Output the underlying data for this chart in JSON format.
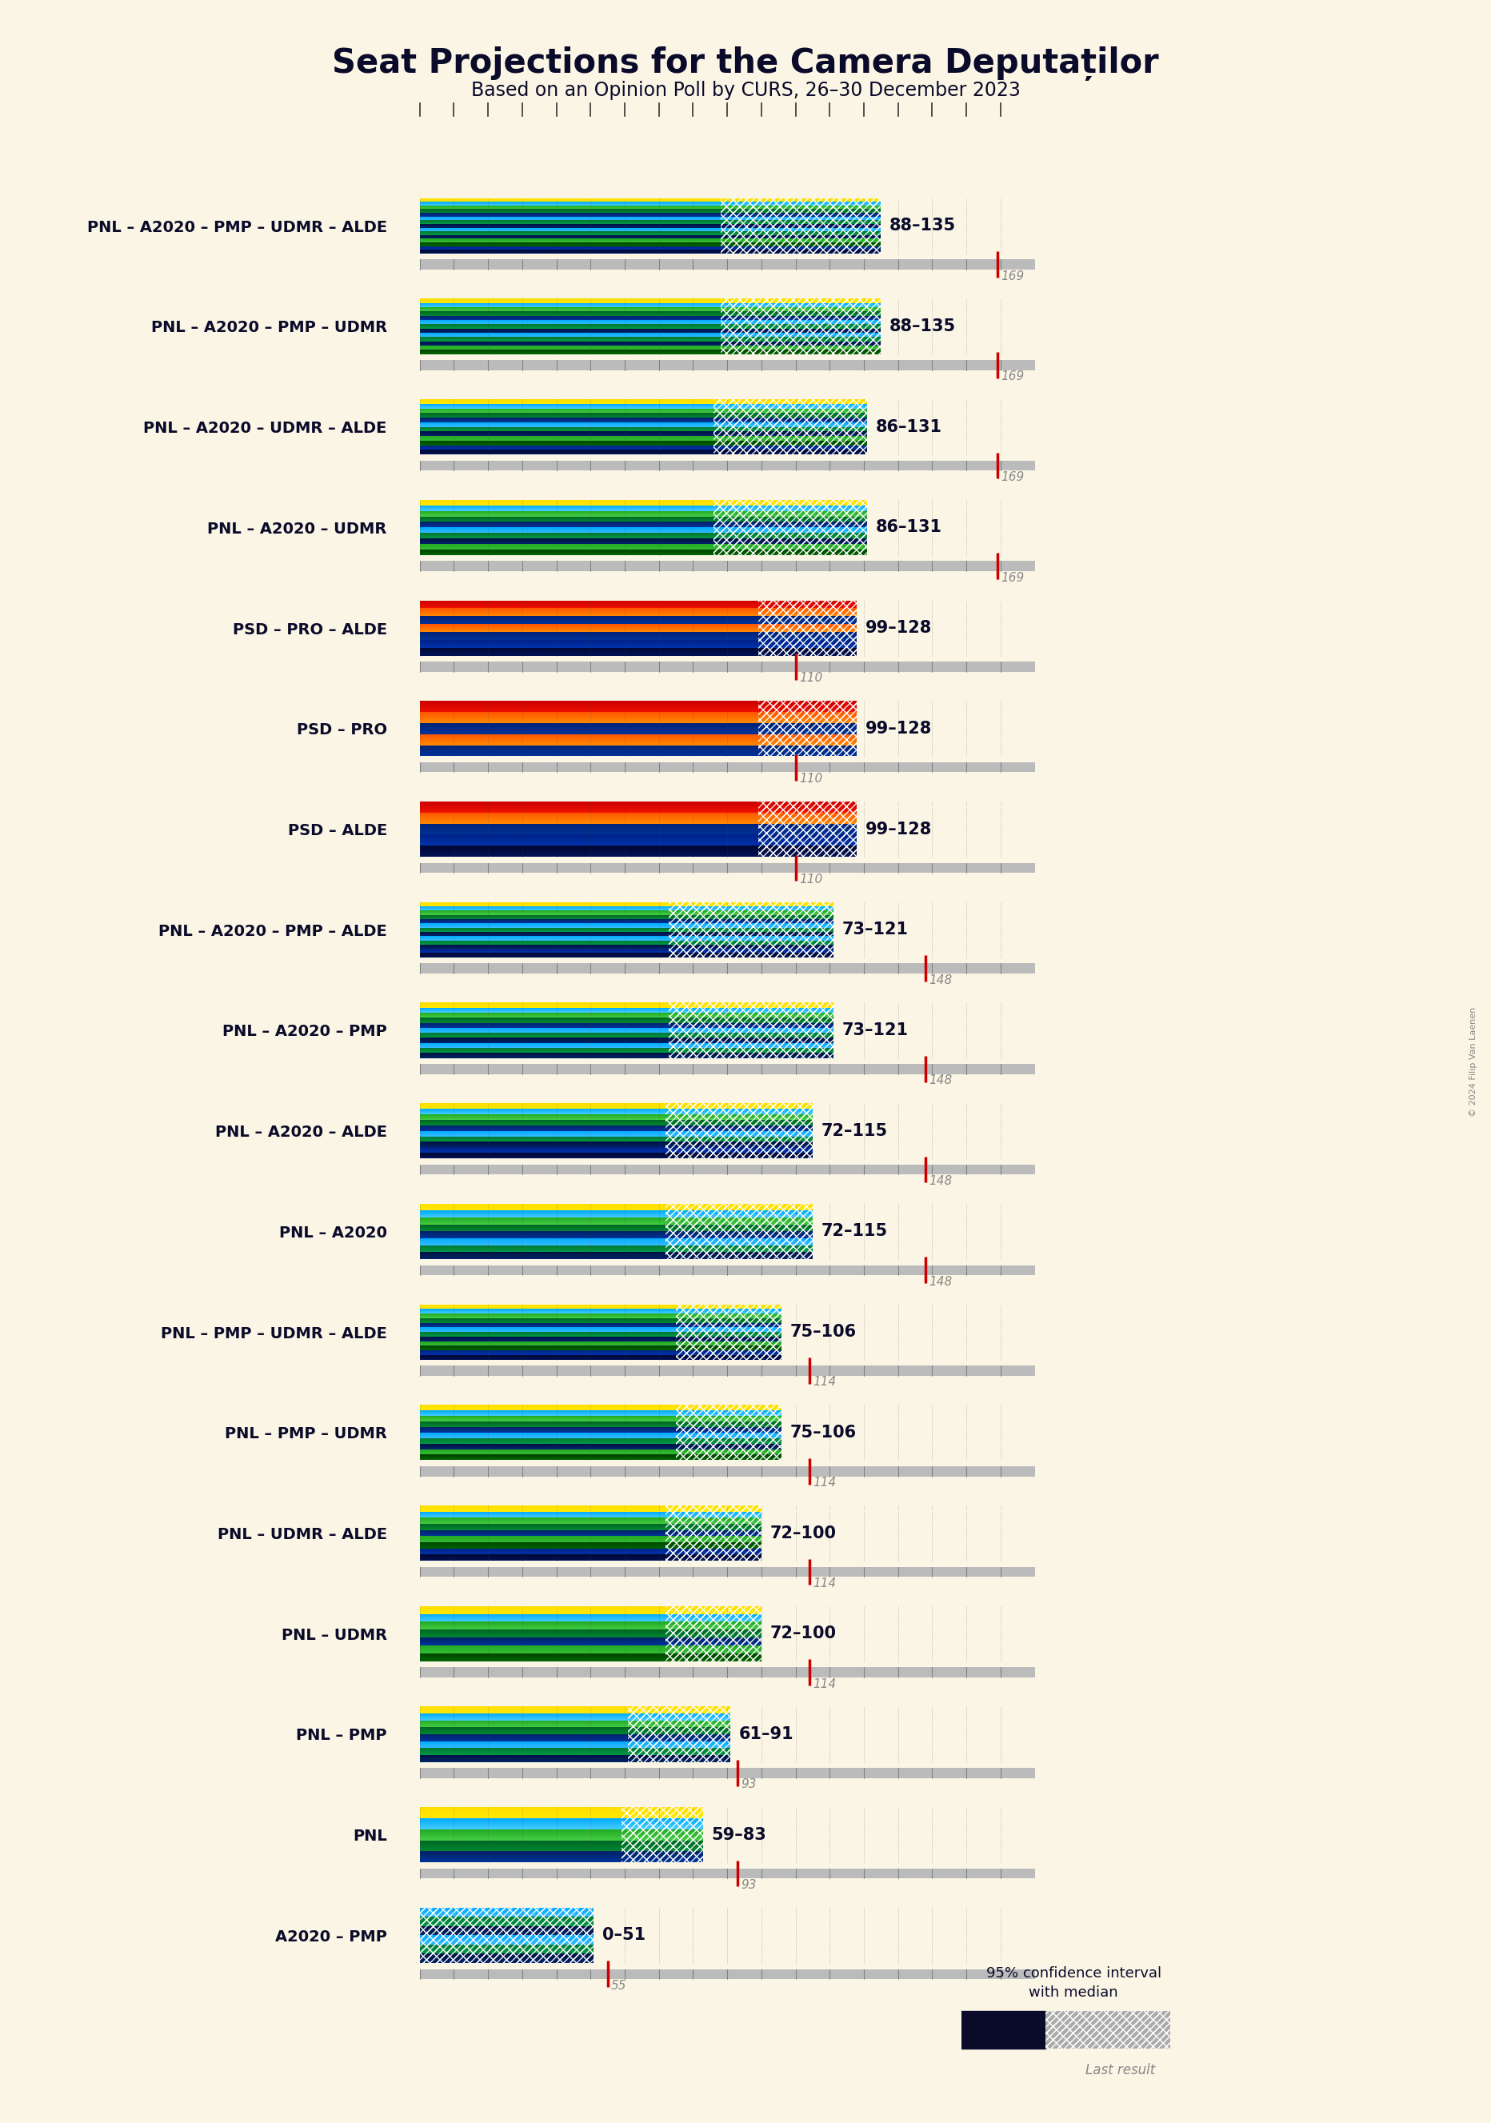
{
  "title": "Seat Projections for the Camera Deputaților",
  "subtitle": "Based on an Opinion Poll by CURS, 26–30 December 2023",
  "copyright": "© 2024 Filip Van Laenen",
  "background_color": "#FAF5E4",
  "coalitions": [
    {
      "name": "PNL – A2020 – PMP – UDMR – ALDE",
      "low": 88,
      "high": 135,
      "last": 169,
      "parties": [
        "PNL",
        "A2020",
        "PMP",
        "UDMR",
        "ALDE"
      ]
    },
    {
      "name": "PNL – A2020 – PMP – UDMR",
      "low": 88,
      "high": 135,
      "last": 169,
      "parties": [
        "PNL",
        "A2020",
        "PMP",
        "UDMR"
      ]
    },
    {
      "name": "PNL – A2020 – UDMR – ALDE",
      "low": 86,
      "high": 131,
      "last": 169,
      "parties": [
        "PNL",
        "A2020",
        "UDMR",
        "ALDE"
      ]
    },
    {
      "name": "PNL – A2020 – UDMR",
      "low": 86,
      "high": 131,
      "last": 169,
      "parties": [
        "PNL",
        "A2020",
        "UDMR"
      ]
    },
    {
      "name": "PSD – PRO – ALDE",
      "low": 99,
      "high": 128,
      "last": 110,
      "parties": [
        "PSD",
        "PRO",
        "ALDE"
      ]
    },
    {
      "name": "PSD – PRO",
      "low": 99,
      "high": 128,
      "last": 110,
      "parties": [
        "PSD",
        "PRO"
      ]
    },
    {
      "name": "PSD – ALDE",
      "low": 99,
      "high": 128,
      "last": 110,
      "parties": [
        "PSD",
        "ALDE"
      ]
    },
    {
      "name": "PNL – A2020 – PMP – ALDE",
      "low": 73,
      "high": 121,
      "last": 148,
      "parties": [
        "PNL",
        "A2020",
        "PMP",
        "ALDE"
      ]
    },
    {
      "name": "PNL – A2020 – PMP",
      "low": 73,
      "high": 121,
      "last": 148,
      "parties": [
        "PNL",
        "A2020",
        "PMP"
      ]
    },
    {
      "name": "PNL – A2020 – ALDE",
      "low": 72,
      "high": 115,
      "last": 148,
      "parties": [
        "PNL",
        "A2020",
        "ALDE"
      ]
    },
    {
      "name": "PNL – A2020",
      "low": 72,
      "high": 115,
      "last": 148,
      "parties": [
        "PNL",
        "A2020"
      ]
    },
    {
      "name": "PNL – PMP – UDMR – ALDE",
      "low": 75,
      "high": 106,
      "last": 114,
      "parties": [
        "PNL",
        "PMP",
        "UDMR",
        "ALDE"
      ]
    },
    {
      "name": "PNL – PMP – UDMR",
      "low": 75,
      "high": 106,
      "last": 114,
      "parties": [
        "PNL",
        "PMP",
        "UDMR"
      ]
    },
    {
      "name": "PNL – UDMR – ALDE",
      "low": 72,
      "high": 100,
      "last": 114,
      "parties": [
        "PNL",
        "UDMR",
        "ALDE"
      ]
    },
    {
      "name": "PNL – UDMR",
      "low": 72,
      "high": 100,
      "last": 114,
      "parties": [
        "PNL",
        "UDMR"
      ]
    },
    {
      "name": "PNL – PMP",
      "low": 61,
      "high": 91,
      "last": 93,
      "parties": [
        "PNL",
        "PMP"
      ]
    },
    {
      "name": "PNL",
      "low": 59,
      "high": 83,
      "last": 93,
      "parties": [
        "PNL"
      ]
    },
    {
      "name": "A2020 – PMP",
      "low": 0,
      "high": 51,
      "last": 55,
      "parties": [
        "A2020",
        "PMP"
      ]
    }
  ],
  "party_bands": {
    "PNL": [
      [
        "#FFE000",
        "#FFE000"
      ],
      [
        "#80D8FF",
        "#00B8FF"
      ],
      [
        "#00CC66",
        "#009944"
      ],
      [
        "#003399",
        "#002266"
      ]
    ],
    "A2020": [
      [
        "#00AAFF",
        "#0077DD"
      ],
      [
        "#006633",
        "#004422"
      ],
      [
        "#002266",
        "#001144"
      ]
    ],
    "PMP": [
      [
        "#00AAFF",
        "#0077DD"
      ],
      [
        "#006633",
        "#004422"
      ],
      [
        "#002266",
        "#001144"
      ]
    ],
    "UDMR": [
      [
        "#22AA22",
        "#116611"
      ],
      [
        "#004400",
        "#003300"
      ]
    ],
    "ALDE": [
      [
        "#003399",
        "#002277"
      ],
      [
        "#001144",
        "#000833"
      ]
    ],
    "PSD": [
      [
        "#EE1100",
        "#CC0000"
      ],
      [
        "#FF7700",
        "#EE5500"
      ],
      [
        "#003399",
        "#002277"
      ]
    ],
    "PRO": [
      [
        "#FF8800",
        "#FF6600"
      ],
      [
        "#003399",
        "#002277"
      ]
    ],
    "USR": [
      [
        "#33BBFF",
        "#0099EE"
      ],
      [
        "#002266",
        "#001144"
      ]
    ]
  },
  "axis_max": 170,
  "tick_interval": 10
}
